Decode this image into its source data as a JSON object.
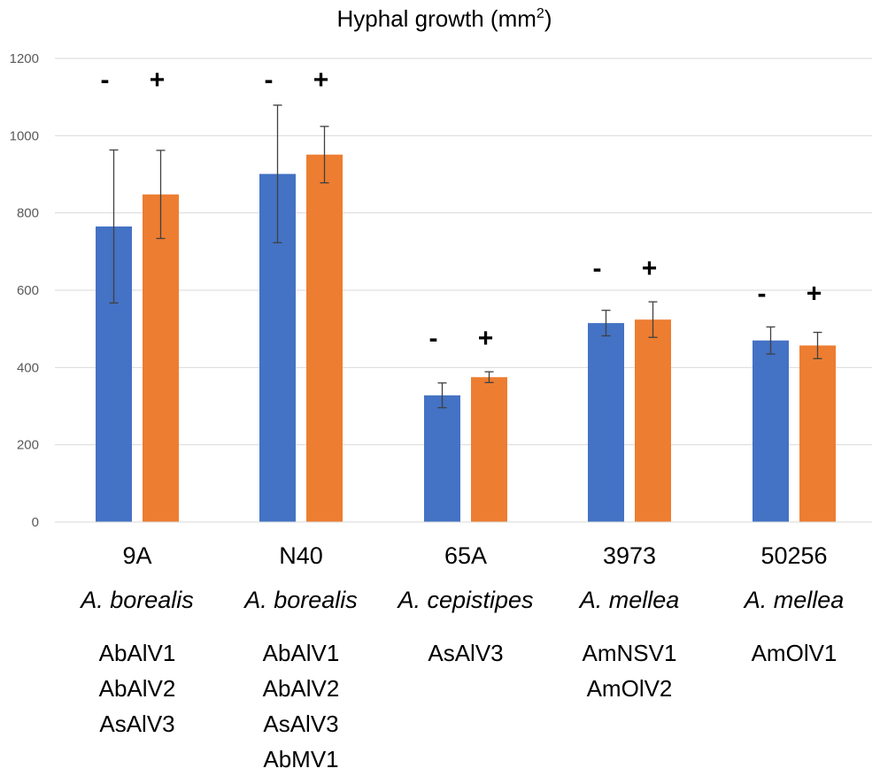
{
  "chart_data": {
    "type": "bar",
    "title": "Hyphal growth (mm",
    "title_superscript": "2",
    "title_suffix": ")",
    "xlabel": "",
    "ylabel": "",
    "ylim": [
      0,
      1200
    ],
    "yticks": [
      0,
      200,
      400,
      600,
      800,
      1000,
      1200
    ],
    "grid": true,
    "categories": [
      "9A",
      "N40",
      "65A",
      "3973",
      "50256"
    ],
    "species": [
      "A. borealis",
      "A. borealis",
      "A. cepistipes",
      "A. mellea",
      "A. mellea"
    ],
    "viruses": [
      [
        "AbAlV1",
        "AbAlV2",
        "AsAlV3"
      ],
      [
        "AbAlV1",
        "AbAlV2",
        "AsAlV3",
        "AbMV1"
      ],
      [
        "AsAlV3"
      ],
      [
        "AmNSV1",
        "AmOlV2"
      ],
      [
        "AmOlV1"
      ]
    ],
    "series": [
      {
        "name": "-",
        "color": "#4472C4",
        "values": [
          765,
          901,
          328,
          515,
          470
        ],
        "errors": [
          198,
          178,
          32,
          33,
          35
        ]
      },
      {
        "name": "+",
        "color": "#ED7D31",
        "values": [
          848,
          951,
          375,
          524,
          457
        ],
        "errors": [
          114,
          73,
          14,
          46,
          34
        ]
      }
    ],
    "treatment_labels": [
      "-",
      "+"
    ]
  }
}
